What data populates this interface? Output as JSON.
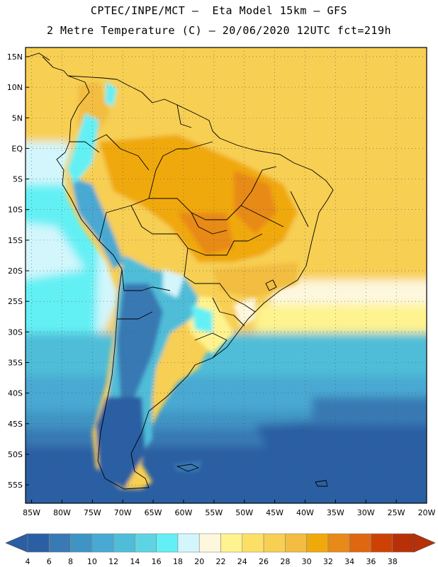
{
  "header": {
    "line1": "CPTEC/INPE/MCT –  Eta Model 15km – GFS",
    "line2": "2 Metre Temperature (C) – 20/06/2020 12UTC fct=219h"
  },
  "axes": {
    "lat_labels": [
      "15N",
      "10N",
      "5N",
      "EQ",
      "5S",
      "10S",
      "15S",
      "20S",
      "25S",
      "30S",
      "35S",
      "40S",
      "45S",
      "50S",
      "55S"
    ],
    "lat_values": [
      15,
      10,
      5,
      0,
      -5,
      -10,
      -15,
      -20,
      -25,
      -30,
      -35,
      -40,
      -45,
      -50,
      -55
    ],
    "lon_labels": [
      "85W",
      "80W",
      "75W",
      "70W",
      "65W",
      "60W",
      "55W",
      "50W",
      "45W",
      "40W",
      "35W",
      "30W",
      "25W",
      "20W"
    ],
    "lon_values": [
      -85,
      -80,
      -75,
      -70,
      -65,
      -60,
      -55,
      -50,
      -45,
      -40,
      -35,
      -30,
      -25,
      -20
    ],
    "lat_range": [
      -58,
      16.5
    ],
    "lon_range": [
      -86,
      -20
    ]
  },
  "colorbar": {
    "ticks": [
      "4",
      "6",
      "8",
      "10",
      "12",
      "14",
      "16",
      "18",
      "20",
      "22",
      "24",
      "26",
      "28",
      "30",
      "32",
      "34",
      "36",
      "38"
    ],
    "colors": [
      "#2b5fa3",
      "#3979b4",
      "#3f94c4",
      "#48a9d2",
      "#4fbdd8",
      "#5ed4e2",
      "#63f0f4",
      "#d2f6fc",
      "#fdf7dd",
      "#fef38e",
      "#fce066",
      "#f7cf52",
      "#f2bd40",
      "#f0a90b",
      "#e88a19",
      "#de6710",
      "#cc4204",
      "#b83008"
    ]
  },
  "colors": {
    "ocean_cold": "#2b5fa3",
    "ocean_mid": "#4fbdd8",
    "ocean_warm": "#f7cf52",
    "land_hot": "#f0a90b"
  }
}
